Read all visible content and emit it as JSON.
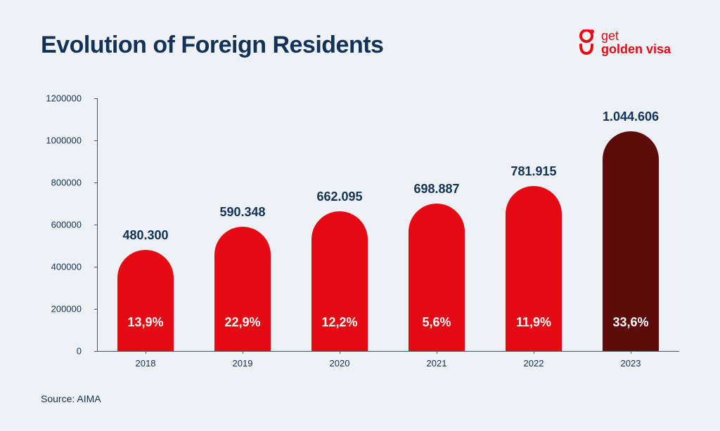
{
  "title": "Evolution of Foreign Residents",
  "logo": {
    "line1": "get",
    "line2": "golden visa",
    "color": "#e50914"
  },
  "source": "Source: AIMA",
  "chart": {
    "type": "bar",
    "background_color": "#eef1f5",
    "text_color": "#133257",
    "title_fontsize": 34,
    "label_fontsize": 13,
    "value_fontsize": 18,
    "ylim": [
      0,
      1200000
    ],
    "ytick_step": 200000,
    "yticks": [
      0,
      200000,
      400000,
      600000,
      800000,
      1000000,
      1200000
    ],
    "categories": [
      "2018",
      "2019",
      "2020",
      "2021",
      "2022",
      "2023"
    ],
    "values": [
      480300,
      590348,
      662095,
      698887,
      781915,
      1044606
    ],
    "value_labels": [
      "480.300",
      "590.348",
      "662.095",
      "698.887",
      "781.915",
      "1.044.606"
    ],
    "pct_labels": [
      "13,9%",
      "22,9%",
      "12,2%",
      "5,6%",
      "11,9%",
      "33,6%"
    ],
    "bar_colors": [
      "#e50914",
      "#e50914",
      "#e50914",
      "#e50914",
      "#e50914",
      "#5c0a0a"
    ],
    "bar_width": 0.58,
    "axis_color": "#4a5568",
    "pct_text_color": "#ffffff"
  }
}
